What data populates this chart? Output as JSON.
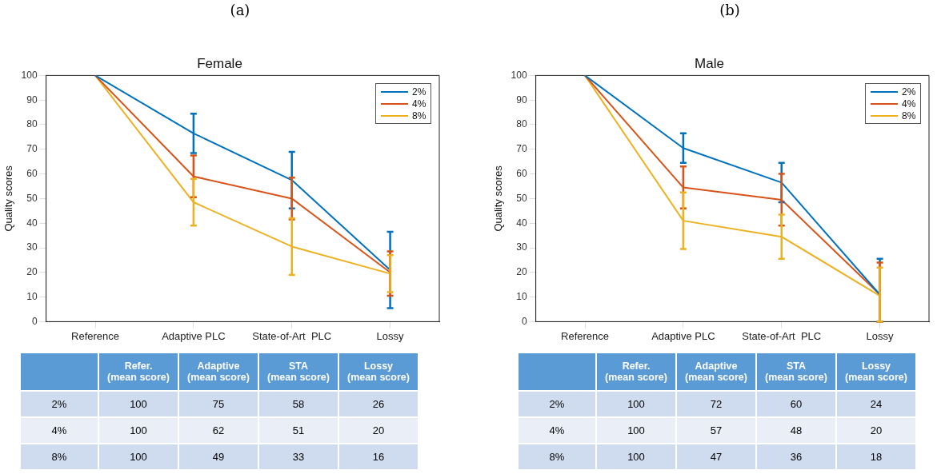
{
  "chart_data": [
    {
      "type": "line",
      "subtitle": "(a)",
      "title": "Female",
      "ylabel": "Quality scores",
      "categories": [
        "Reference",
        "Adaptive PLC",
        "State-of-Art  PLC",
        "Lossy"
      ],
      "ylim": [
        0,
        100
      ],
      "yticks": [
        0,
        10,
        20,
        30,
        40,
        50,
        60,
        70,
        80,
        90,
        100
      ],
      "grid": false,
      "legend": "top right",
      "marker": "none",
      "line_style": "solid",
      "series": [
        {
          "name": "2%",
          "color": "#0072bd",
          "values": [
            100,
            76.5,
            57.5,
            21
          ],
          "errors": [
            null,
            [
              68.5,
              84.5
            ],
            [
              46,
              69
            ],
            [
              5.5,
              36.5
            ]
          ]
        },
        {
          "name": "4%",
          "color": "#d95319",
          "values": [
            100,
            59,
            50,
            20
          ],
          "errors": [
            null,
            [
              50.5,
              67.5
            ],
            [
              41.5,
              58.5
            ],
            [
              10.5,
              28.5
            ]
          ]
        },
        {
          "name": "8%",
          "color": "#edb120",
          "values": [
            100,
            48.5,
            30.5,
            19.5
          ],
          "errors": [
            null,
            [
              39,
              58
            ],
            [
              19,
              42
            ],
            [
              12,
              27
            ]
          ]
        }
      ]
    },
    {
      "type": "other",
      "categories": [
        "Refer. (mean score)",
        "Adaptive (mean score)",
        "STA (mean score)",
        "Lossy (mean score)"
      ],
      "data_labels": true,
      "series": [
        {
          "name": "2%",
          "values": [
            100,
            75,
            58,
            26
          ]
        },
        {
          "name": "4%",
          "values": [
            100,
            62,
            51,
            20
          ]
        },
        {
          "name": "8%",
          "values": [
            100,
            49,
            33,
            16
          ]
        }
      ]
    },
    {
      "type": "line",
      "subtitle": "(b)",
      "title": "Male",
      "ylabel": "Quality scores",
      "categories": [
        "Reference",
        "Adaptive PLC",
        "State-of-Art  PLC",
        "Lossy"
      ],
      "ylim": [
        0,
        100
      ],
      "yticks": [
        0,
        10,
        20,
        30,
        40,
        50,
        60,
        70,
        80,
        90,
        100
      ],
      "grid": false,
      "legend": "top right",
      "marker": "none",
      "line_style": "solid",
      "series": [
        {
          "name": "2%",
          "color": "#0072bd",
          "values": [
            100,
            70.5,
            56.5,
            11
          ],
          "errors": [
            null,
            [
              64.5,
              76.5
            ],
            [
              48.5,
              64.5
            ],
            [
              0,
              25.5
            ]
          ]
        },
        {
          "name": "4%",
          "color": "#d95319",
          "values": [
            100,
            54.5,
            49.5,
            11
          ],
          "errors": [
            null,
            [
              46,
              63
            ],
            [
              39,
              60
            ],
            [
              0,
              24
            ]
          ]
        },
        {
          "name": "8%",
          "color": "#edb120",
          "values": [
            100,
            41,
            34.5,
            10.5
          ],
          "errors": [
            null,
            [
              29.5,
              52.5
            ],
            [
              25.5,
              43.5
            ],
            [
              0,
              22
            ]
          ]
        }
      ]
    },
    {
      "type": "other",
      "categories": [
        "Refer. (mean score)",
        "Adaptive (mean score)",
        "STA (mean score)",
        "Lossy (mean score)"
      ],
      "data_labels": true,
      "series": [
        {
          "name": "2%",
          "values": [
            100,
            72,
            60,
            24
          ]
        },
        {
          "name": "4%",
          "values": [
            100,
            57,
            48,
            20
          ]
        },
        {
          "name": "8%",
          "values": [
            100,
            47,
            36,
            18
          ]
        }
      ]
    }
  ]
}
